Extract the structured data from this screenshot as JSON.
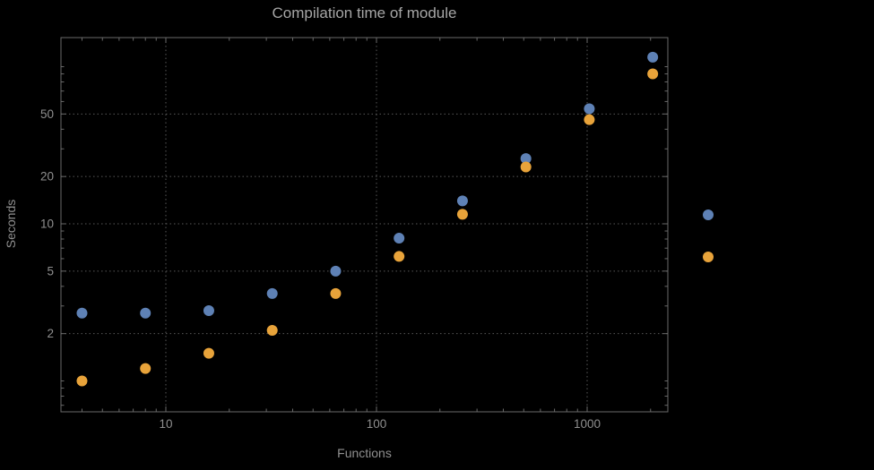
{
  "chart_data": {
    "type": "scatter",
    "title": "Compilation time of module",
    "xlabel": "Functions",
    "ylabel": "Seconds",
    "x_scale": "log",
    "y_scale": "log",
    "xlim": [
      3.2,
      2400
    ],
    "ylim": [
      0.64,
      150
    ],
    "x_ticks": [
      10,
      100,
      1000
    ],
    "x_tick_labels": [
      "10",
      "100",
      "1000"
    ],
    "y_ticks": [
      2,
      5,
      10,
      20,
      50
    ],
    "y_tick_labels": [
      "2",
      "5",
      "10",
      "20",
      "50"
    ],
    "x_gridlines": [
      10,
      100,
      1000
    ],
    "y_gridlines": [
      2,
      5,
      10,
      20,
      50
    ],
    "grid_style": "dotted",
    "x": [
      4,
      8,
      16,
      32,
      64,
      128,
      256,
      512,
      1024,
      2048
    ],
    "series": [
      {
        "name": "blue-series",
        "color": "#5E81B5",
        "values": [
          2.7,
          2.7,
          2.8,
          3.6,
          5.0,
          8.1,
          14,
          26,
          54,
          115
        ]
      },
      {
        "name": "orange-series",
        "color": "#E8A33A",
        "values": [
          1.0,
          1.2,
          1.5,
          2.1,
          3.6,
          6.2,
          11.5,
          23,
          46,
          90
        ]
      }
    ],
    "legend": {
      "position": "right-outside",
      "markers_only": true,
      "labels": [
        "",
        ""
      ]
    }
  },
  "colors": {
    "background": "#000000",
    "frame": "#6a6a6a",
    "grid": "#585858",
    "title_text": "#a6a6a6",
    "label_text": "#8f8f8f",
    "series_blue": "#5E81B5",
    "series_orange": "#E8A33A"
  }
}
